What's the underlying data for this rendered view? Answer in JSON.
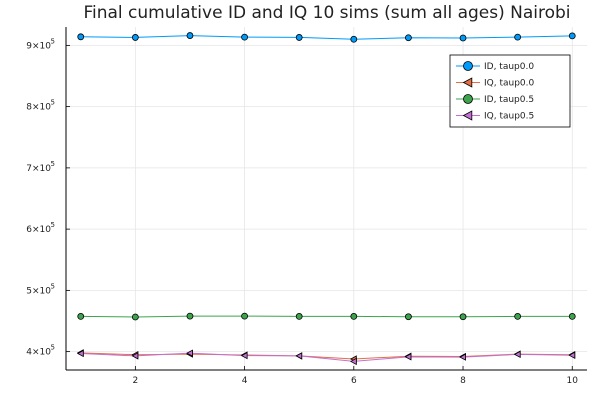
{
  "chart_data": {
    "type": "line",
    "title": "Final cumulative ID and IQ 10 sims (sum all ages) Nairobi",
    "xlabel": "",
    "ylabel": "",
    "x": [
      1,
      2,
      3,
      4,
      5,
      6,
      7,
      8,
      9,
      10
    ],
    "xlim": [
      0.73,
      10.27
    ],
    "ylim": [
      370000,
      930000
    ],
    "x_ticks": [
      2,
      4,
      6,
      8,
      10
    ],
    "y_ticks": [
      {
        "value": 400000,
        "mantissa": "4",
        "exponent": "5"
      },
      {
        "value": 500000,
        "mantissa": "5",
        "exponent": "5"
      },
      {
        "value": 600000,
        "mantissa": "6",
        "exponent": "5"
      },
      {
        "value": 700000,
        "mantissa": "7",
        "exponent": "5"
      },
      {
        "value": 800000,
        "mantissa": "8",
        "exponent": "5"
      },
      {
        "value": 900000,
        "mantissa": "9",
        "exponent": "5"
      }
    ],
    "grid": true,
    "legend_position": "top-right",
    "series": [
      {
        "name": "ID, taup0.0",
        "color": "#009af9",
        "marker": "circle",
        "values": [
          914000,
          913000,
          916000,
          913500,
          913000,
          910000,
          912500,
          912000,
          913500,
          915500
        ]
      },
      {
        "name": "IQ, taup0.0",
        "color": "#e26f46",
        "marker": "triangle-left",
        "values": [
          398000,
          395000,
          396000,
          394500,
          393000,
          388000,
          392500,
          392000,
          396000,
          395000
        ]
      },
      {
        "name": "ID, taup0.5",
        "color": "#3da44d",
        "marker": "circle",
        "values": [
          457500,
          456500,
          458000,
          458000,
          457500,
          457500,
          457000,
          457000,
          457500,
          457500
        ]
      },
      {
        "name": "IQ, taup0.5",
        "color": "#c271d2",
        "marker": "triangle-left",
        "values": [
          397000,
          393000,
          397500,
          393500,
          393000,
          384000,
          391500,
          391000,
          395500,
          394000
        ]
      }
    ]
  }
}
